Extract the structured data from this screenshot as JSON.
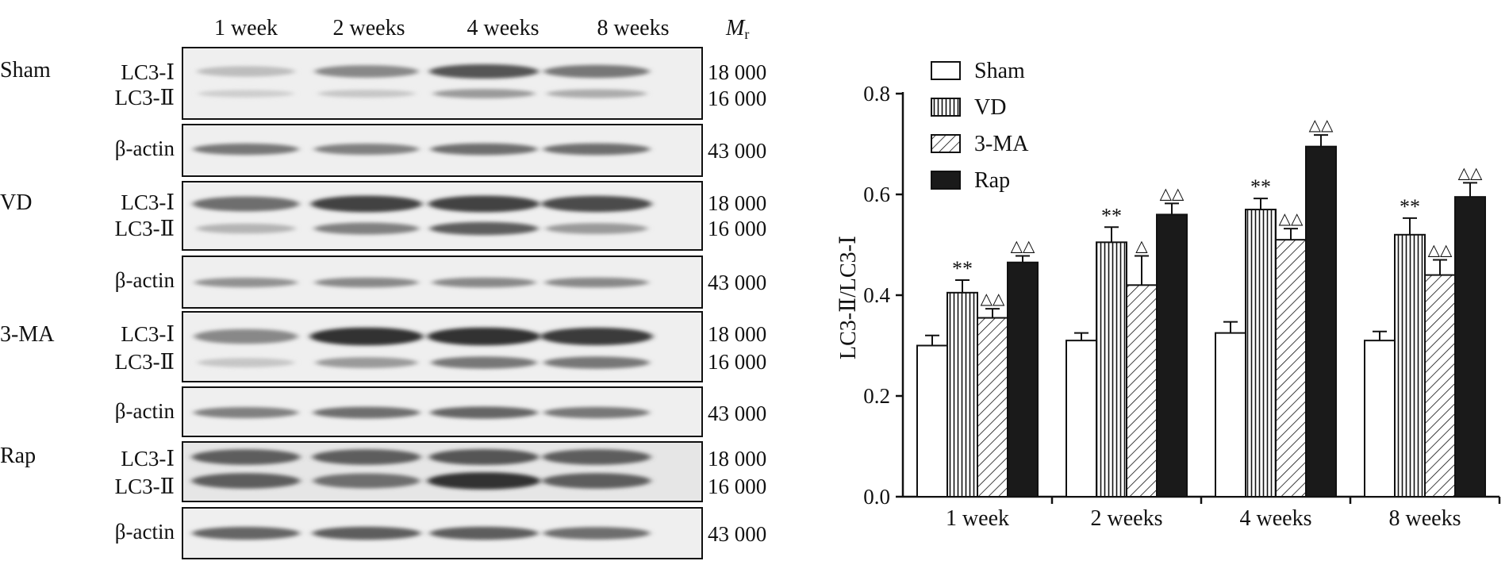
{
  "blot": {
    "week_labels": [
      "1 week",
      "2 weeks",
      "4 weeks",
      "8 weeks"
    ],
    "mr_label_main": "M",
    "mr_label_sub": "r",
    "lc3_i_label": "LC3-Ⅰ",
    "lc3_ii_label": "LC3-Ⅱ",
    "actin_label": "β-actin",
    "mr_18000": "18 000",
    "mr_16000": "16 000",
    "mr_43000": "43 000",
    "groups": [
      {
        "name": "Sham",
        "lc3_i": [
          0.15,
          0.45,
          0.75,
          0.55
        ],
        "lc3_ii": [
          0.05,
          0.1,
          0.35,
          0.25
        ],
        "actin": [
          0.55,
          0.5,
          0.6,
          0.6
        ]
      },
      {
        "name": "VD",
        "lc3_i": [
          0.6,
          0.85,
          0.85,
          0.8
        ],
        "lc3_ii": [
          0.2,
          0.5,
          0.7,
          0.35
        ],
        "actin": [
          0.4,
          0.45,
          0.45,
          0.45
        ]
      },
      {
        "name": "3-MA",
        "lc3_i": [
          0.45,
          0.95,
          0.95,
          0.9
        ],
        "lc3_ii": [
          0.1,
          0.35,
          0.55,
          0.55
        ],
        "actin": [
          0.5,
          0.6,
          0.65,
          0.55
        ]
      },
      {
        "name": "Rap",
        "lc3_i": [
          0.7,
          0.7,
          0.75,
          0.7
        ],
        "lc3_ii": [
          0.7,
          0.6,
          0.95,
          0.7
        ],
        "actin": [
          0.65,
          0.7,
          0.7,
          0.6
        ]
      }
    ]
  },
  "chart_data": {
    "type": "bar",
    "title": "",
    "xlabel": "",
    "ylabel": "LC3-Ⅱ/LC3-Ⅰ",
    "ylim": [
      0,
      0.8
    ],
    "yticks": [
      "0.0",
      "0.2",
      "0.4",
      "0.6",
      "0.8"
    ],
    "categories": [
      "1 week",
      "2 weeks",
      "4 weeks",
      "8 weeks"
    ],
    "legend_position": "top-left",
    "series": [
      {
        "name": "Sham",
        "pattern": "white",
        "values": [
          0.3,
          0.31,
          0.325,
          0.31
        ],
        "errors": [
          0.02,
          0.015,
          0.022,
          0.018
        ],
        "marks": [
          "",
          "",
          "",
          ""
        ]
      },
      {
        "name": "VD",
        "pattern": "vertical",
        "values": [
          0.405,
          0.505,
          0.57,
          0.52
        ],
        "errors": [
          0.025,
          0.03,
          0.022,
          0.033
        ],
        "marks": [
          "**",
          "**",
          "**",
          "**"
        ]
      },
      {
        "name": "3-MA",
        "pattern": "diagonal",
        "values": [
          0.355,
          0.42,
          0.51,
          0.44
        ],
        "errors": [
          0.018,
          0.058,
          0.022,
          0.03
        ],
        "marks": [
          "△△",
          "△",
          "△△",
          "△△"
        ]
      },
      {
        "name": "Rap",
        "pattern": "black",
        "values": [
          0.465,
          0.56,
          0.695,
          0.595
        ],
        "errors": [
          0.013,
          0.022,
          0.023,
          0.028
        ],
        "marks": [
          "△△",
          "△△",
          "△△",
          "△△"
        ]
      }
    ]
  }
}
